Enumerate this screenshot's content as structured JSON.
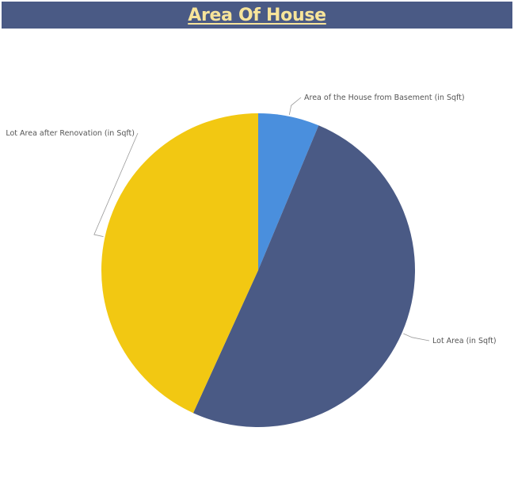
{
  "title": "Area Of House",
  "chart_data": {
    "type": "pie",
    "title": "Area Of House",
    "slices": [
      {
        "label": "Area of the House from Basement (in Sqft)",
        "value": 6.3,
        "color": "#4a8fdd"
      },
      {
        "label": "Lot Area (in Sqft)",
        "value": 50.5,
        "color": "#4a5a85"
      },
      {
        "label": "Lot Area after Renovation (in Sqft)",
        "value": 43.2,
        "color": "#f2c812"
      }
    ]
  }
}
